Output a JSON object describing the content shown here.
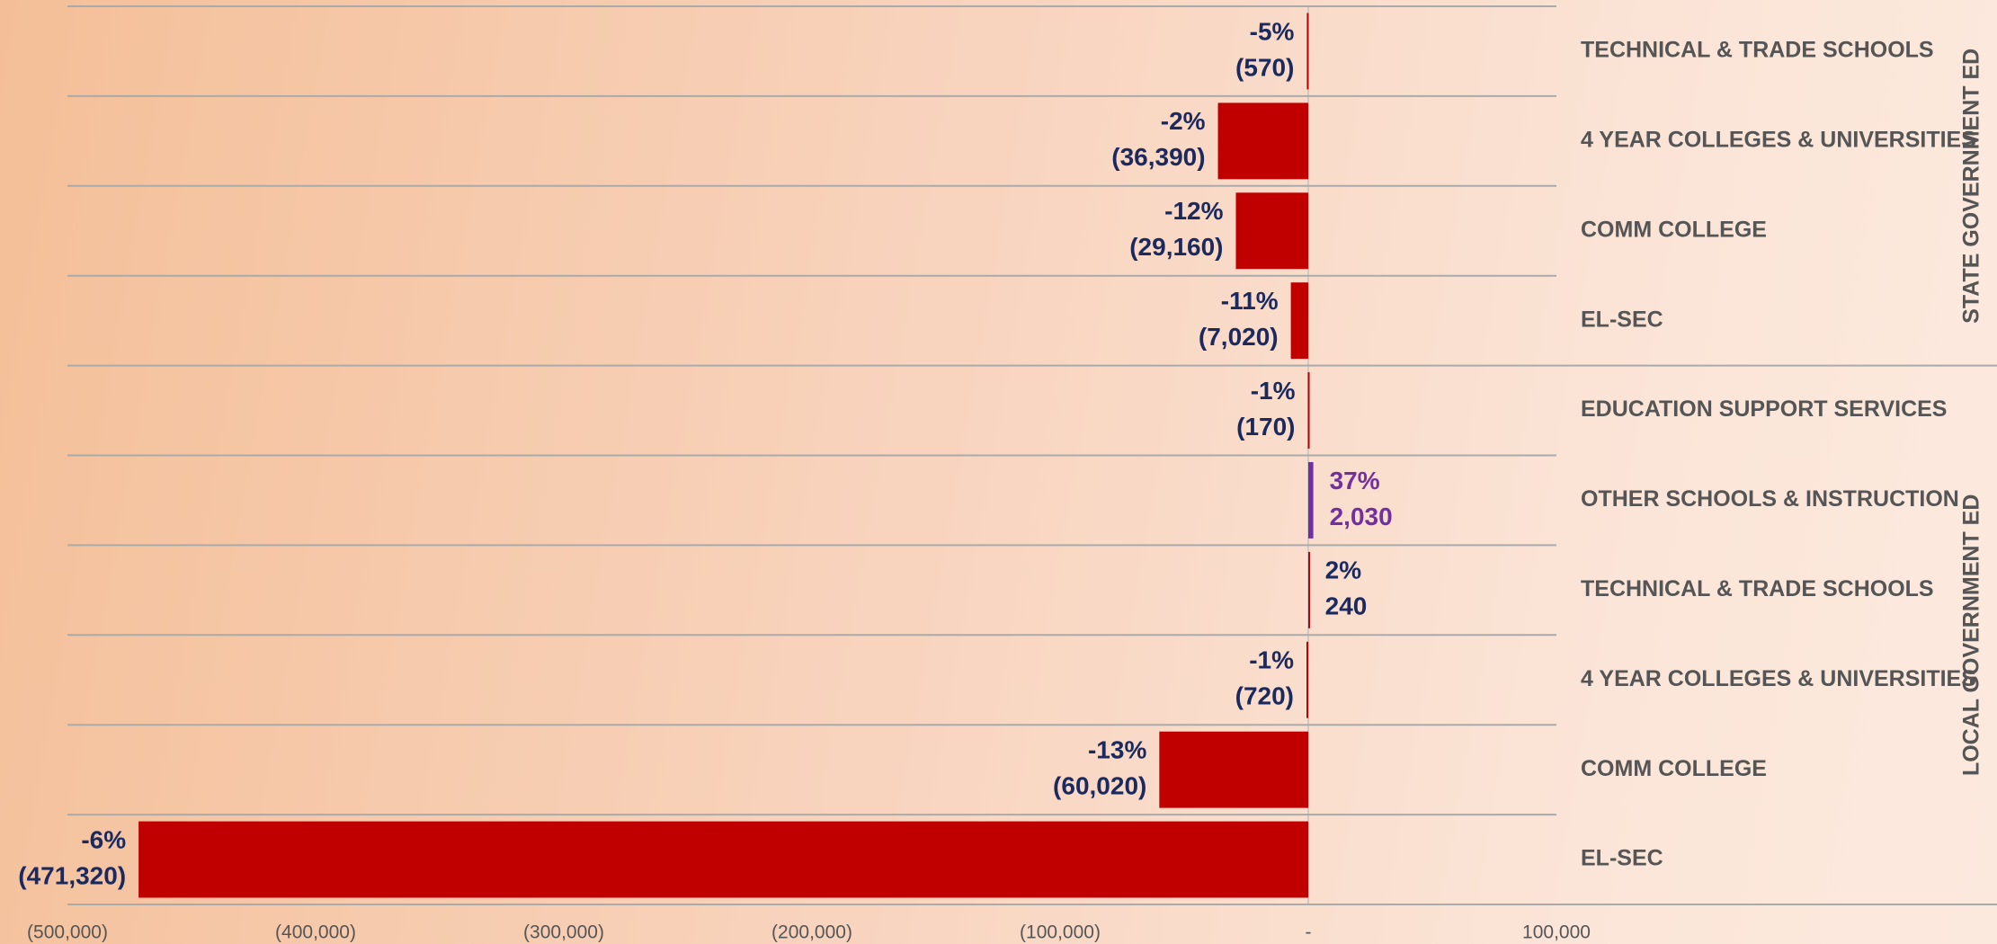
{
  "chart_data": {
    "type": "bar",
    "orientation": "horizontal",
    "groups": [
      {
        "name": "STATE GOVERNMENT ED",
        "categories": [
          "TECHNICAL & TRADE SCHOOLS",
          "4 YEAR COLLEGES & UNIVERSITIES",
          "COMM COLLEGE",
          "EL-SEC"
        ],
        "values": [
          -570,
          -36390,
          -29160,
          -7020
        ],
        "value_labels": [
          "(570)",
          "(36,390)",
          "(29,160)",
          "(7,020)"
        ],
        "percent_labels": [
          "-5%",
          "-2%",
          "-12%",
          "-11%"
        ],
        "colors": [
          "#c00000",
          "#c00000",
          "#c00000",
          "#c00000"
        ],
        "label_colors": [
          "#1b2a5e",
          "#1b2a5e",
          "#1b2a5e",
          "#1b2a5e"
        ]
      },
      {
        "name": "LOCAL GOVERNMENT ED",
        "categories": [
          "EDUCATION SUPPORT SERVICES",
          "OTHER SCHOOLS & INSTRUCTION",
          "TECHNICAL & TRADE SCHOOLS",
          "4 YEAR COLLEGES & UNIVERSITIES",
          "COMM COLLEGE",
          "EL-SEC"
        ],
        "values": [
          -170,
          2030,
          240,
          -720,
          -60020,
          -471320
        ],
        "value_labels": [
          "(170)",
          "2,030",
          "240",
          "(720)",
          "(60,020)",
          "(471,320)"
        ],
        "percent_labels": [
          "-1%",
          "37%",
          "2%",
          "-1%",
          "-13%",
          "-6%"
        ],
        "colors": [
          "#c00000",
          "#7030a0",
          "#c00000",
          "#c00000",
          "#c00000",
          "#c00000"
        ],
        "label_colors": [
          "#1b2a5e",
          "#7030a0",
          "#1b2a5e",
          "#1b2a5e",
          "#1b2a5e",
          "#1b2a5e"
        ]
      }
    ],
    "xlim": [
      -500000,
      100000
    ],
    "xticks": [
      {
        "value": -500000,
        "label": "(500,000)"
      },
      {
        "value": -400000,
        "label": "(400,000)"
      },
      {
        "value": -300000,
        "label": "(300,000)"
      },
      {
        "value": -200000,
        "label": "(200,000)"
      },
      {
        "value": -100000,
        "label": "(100,000)"
      },
      {
        "value": 0,
        "label": "-"
      },
      {
        "value": 100000,
        "label": "100,000"
      }
    ]
  }
}
